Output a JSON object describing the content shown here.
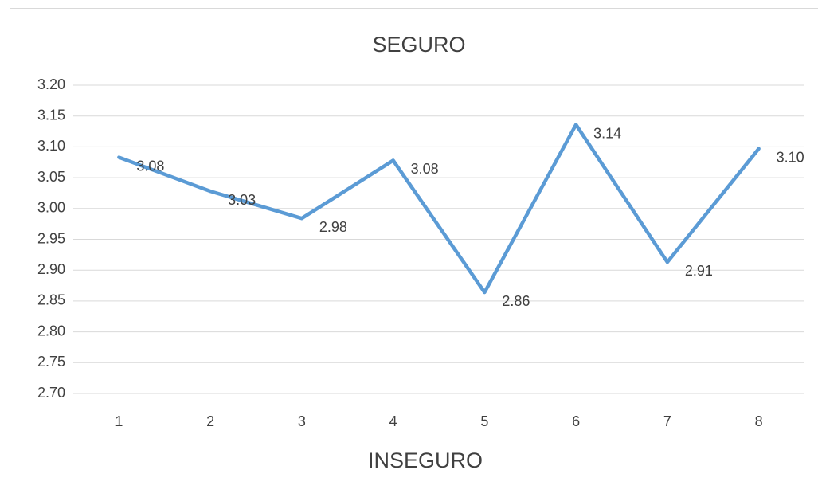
{
  "chart_data": {
    "type": "line",
    "title": "SEGURO",
    "x_label": "INSEGURO",
    "categories": [
      "1",
      "2",
      "3",
      "4",
      "5",
      "6",
      "7",
      "8"
    ],
    "series": [
      {
        "color": "#5b9bd5",
        "values": [
          3.083,
          3.028,
          2.984,
          3.078,
          2.864,
          3.136,
          2.913,
          3.097
        ],
        "value_labels": [
          "3.08",
          "3.03",
          "2.98",
          "3.08",
          "2.86",
          "3.14",
          "2.91",
          "3.10"
        ]
      }
    ],
    "ylim": [
      2.7,
      3.2
    ],
    "yticks": [
      {
        "value": 2.7,
        "label": "2.70"
      },
      2.75,
      {
        "value": 2.8,
        "label": "2.80"
      },
      2.85,
      {
        "value": 2.9,
        "label": "2.90"
      },
      2.95,
      {
        "value": 3.0,
        "label": "3.00"
      },
      3.05,
      {
        "value": 3.1,
        "label": "3.10"
      },
      3.15,
      {
        "value": 3.2,
        "label": "3.20"
      }
    ],
    "grid": true
  }
}
